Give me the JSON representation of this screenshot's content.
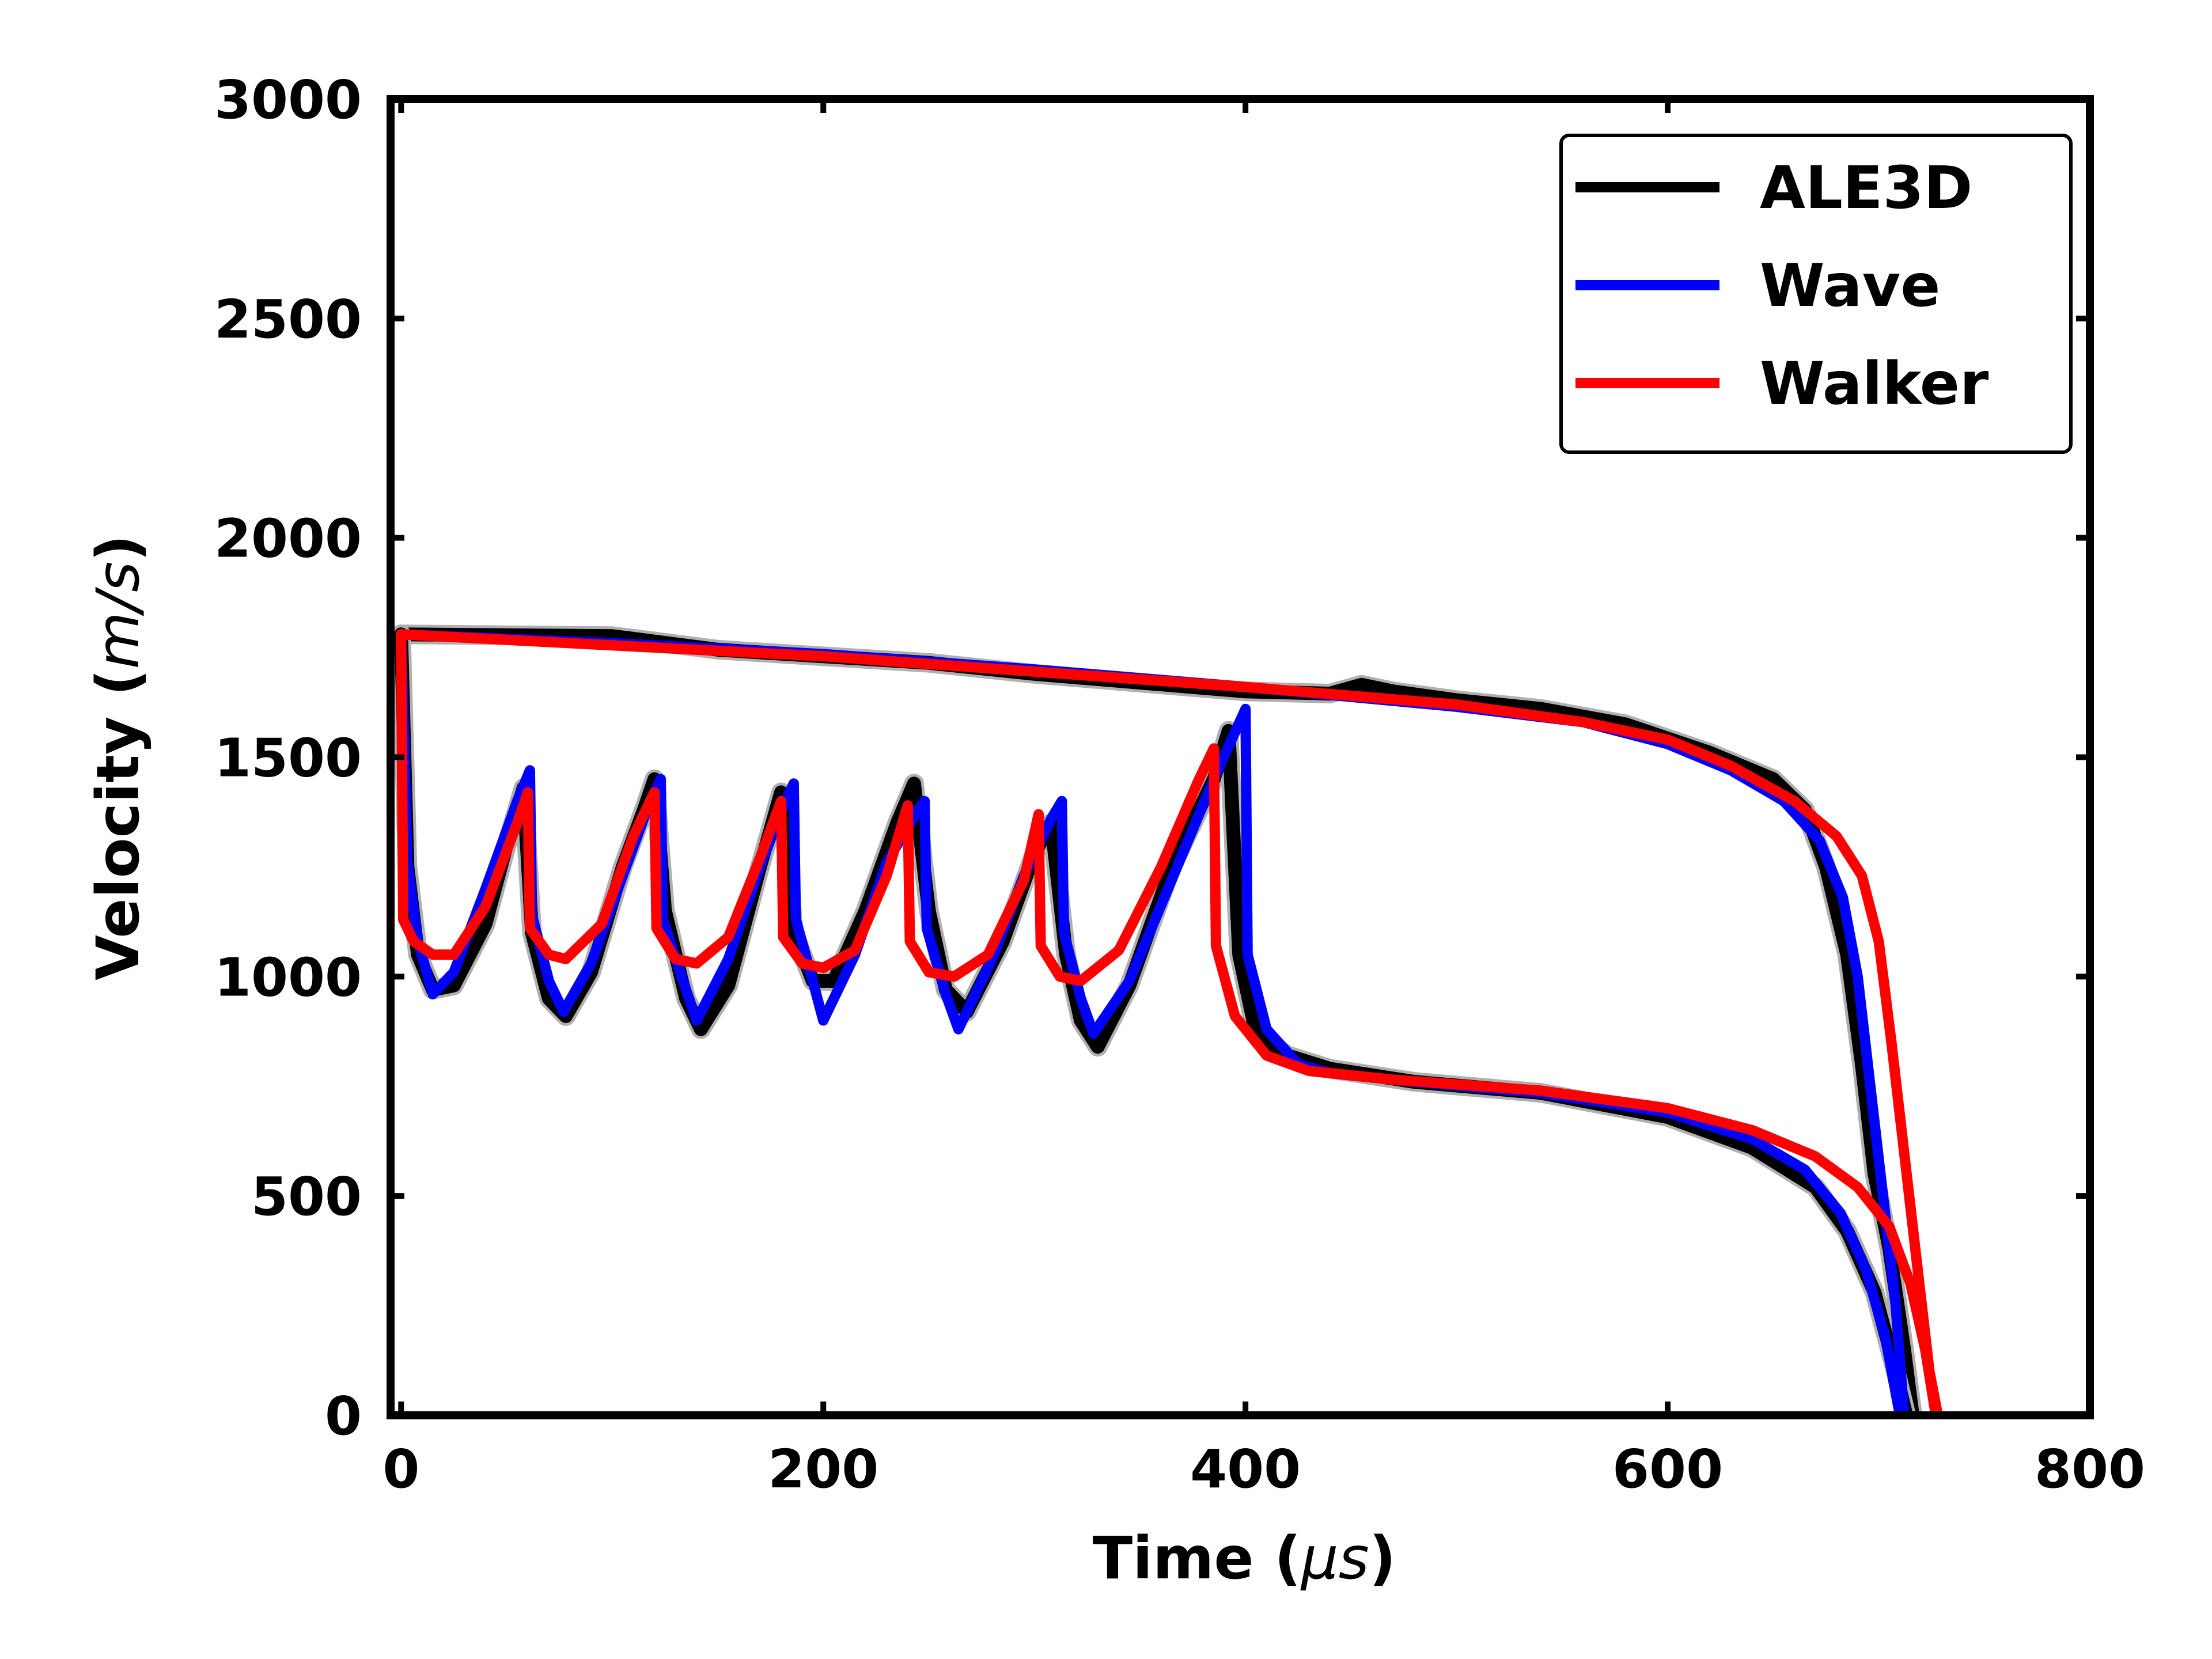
{
  "chart_data": {
    "type": "line",
    "title": "",
    "xlabel_main": "Time (",
    "xlabel_unit": "μs",
    "xlabel_close": ")",
    "ylabel_main": "Velocity (",
    "ylabel_unit": "m/s",
    "ylabel_close": ")",
    "xlim": [
      -5,
      800
    ],
    "ylim": [
      0,
      3000
    ],
    "xticks": [
      0,
      200,
      400,
      600,
      800
    ],
    "yticks": [
      0,
      500,
      1000,
      1500,
      2000,
      2500,
      3000
    ],
    "xtick_labels": [
      "0",
      "200",
      "400",
      "600",
      "800"
    ],
    "ytick_labels": [
      "0",
      "500",
      "1000",
      "1500",
      "2000",
      "2500",
      "3000"
    ],
    "grid": false,
    "legend_position": "top-right",
    "series": [
      {
        "name": "ALE3D",
        "color": "#000000",
        "segments": [
          [
            [
              0,
              1780
            ],
            [
              50,
              1778
            ],
            [
              100,
              1776
            ],
            [
              110,
              1770
            ],
            [
              150,
              1745
            ],
            [
              200,
              1730
            ],
            [
              250,
              1715
            ],
            [
              300,
              1690
            ],
            [
              350,
              1670
            ],
            [
              400,
              1650
            ],
            [
              440,
              1645
            ],
            [
              455,
              1665
            ],
            [
              470,
              1650
            ],
            [
              500,
              1630
            ],
            [
              540,
              1610
            ],
            [
              580,
              1575
            ],
            [
              620,
              1510
            ],
            [
              650,
              1450
            ],
            [
              665,
              1380
            ],
            [
              675,
              1250
            ],
            [
              685,
              1050
            ],
            [
              692,
              800
            ],
            [
              698,
              550
            ],
            [
              705,
              380
            ],
            [
              712,
              150
            ],
            [
              716,
              0
            ]
          ],
          [
            [
              0,
              1780
            ],
            [
              3,
              1250
            ],
            [
              8,
              1050
            ],
            [
              15,
              970
            ],
            [
              25,
              980
            ],
            [
              40,
              1120
            ],
            [
              50,
              1300
            ],
            [
              58,
              1430
            ],
            [
              62,
              1100
            ],
            [
              70,
              950
            ],
            [
              78,
              910
            ],
            [
              90,
              1010
            ],
            [
              105,
              1250
            ],
            [
              115,
              1380
            ],
            [
              120,
              1450
            ],
            [
              125,
              1150
            ],
            [
              135,
              950
            ],
            [
              142,
              880
            ],
            [
              155,
              980
            ],
            [
              170,
              1250
            ],
            [
              180,
              1420
            ],
            [
              186,
              1100
            ],
            [
              195,
              990
            ],
            [
              205,
              990
            ],
            [
              220,
              1150
            ],
            [
              235,
              1350
            ],
            [
              243,
              1440
            ],
            [
              250,
              1150
            ],
            [
              258,
              970
            ],
            [
              268,
              920
            ],
            [
              285,
              1080
            ],
            [
              300,
              1280
            ],
            [
              308,
              1350
            ],
            [
              315,
              1050
            ],
            [
              322,
              900
            ],
            [
              330,
              840
            ],
            [
              345,
              980
            ],
            [
              365,
              1250
            ],
            [
              385,
              1450
            ],
            [
              392,
              1560
            ],
            [
              397,
              1050
            ],
            [
              405,
              870
            ],
            [
              420,
              820
            ],
            [
              440,
              790
            ],
            [
              480,
              760
            ],
            [
              540,
              735
            ],
            [
              600,
              680
            ],
            [
              640,
              610
            ],
            [
              670,
              520
            ],
            [
              685,
              420
            ],
            [
              698,
              280
            ],
            [
              708,
              100
            ],
            [
              713,
              0
            ]
          ]
        ]
      },
      {
        "name": "Wave",
        "color": "#0000ff",
        "segments": [
          [
            [
              0,
              1780
            ],
            [
              100,
              1760
            ],
            [
              200,
              1735
            ],
            [
              300,
              1700
            ],
            [
              400,
              1660
            ],
            [
              500,
              1615
            ],
            [
              560,
              1580
            ],
            [
              600,
              1530
            ],
            [
              630,
              1470
            ],
            [
              655,
              1400
            ],
            [
              672,
              1310
            ],
            [
              683,
              1180
            ],
            [
              690,
              1000
            ],
            [
              696,
              750
            ],
            [
              702,
              500
            ],
            [
              708,
              250
            ],
            [
              712,
              0
            ]
          ],
          [
            [
              0,
              1780
            ],
            [
              3,
              1260
            ],
            [
              8,
              1080
            ],
            [
              15,
              960
            ],
            [
              25,
              1010
            ],
            [
              40,
              1200
            ],
            [
              55,
              1400
            ],
            [
              61,
              1470
            ],
            [
              62,
              1140
            ],
            [
              70,
              990
            ],
            [
              77,
              920
            ],
            [
              90,
              1030
            ],
            [
              105,
              1230
            ],
            [
              118,
              1400
            ],
            [
              123,
              1450
            ],
            [
              124,
              1130
            ],
            [
              135,
              970
            ],
            [
              140,
              900
            ],
            [
              155,
              1040
            ],
            [
              170,
              1250
            ],
            [
              182,
              1400
            ],
            [
              186,
              1440
            ],
            [
              187,
              1130
            ],
            [
              195,
              990
            ],
            [
              200,
              900
            ],
            [
              215,
              1050
            ],
            [
              230,
              1260
            ],
            [
              245,
              1380
            ],
            [
              248,
              1400
            ],
            [
              249,
              1110
            ],
            [
              258,
              960
            ],
            [
              264,
              880
            ],
            [
              280,
              1040
            ],
            [
              295,
              1230
            ],
            [
              308,
              1360
            ],
            [
              313,
              1400
            ],
            [
              314,
              1100
            ],
            [
              322,
              950
            ],
            [
              328,
              870
            ],
            [
              345,
              990
            ],
            [
              365,
              1220
            ],
            [
              385,
              1450
            ],
            [
              400,
              1610
            ],
            [
              401,
              1050
            ],
            [
              410,
              880
            ],
            [
              425,
              800
            ],
            [
              440,
              780
            ],
            [
              480,
              760
            ],
            [
              540,
              735
            ],
            [
              600,
              690
            ],
            [
              640,
              630
            ],
            [
              665,
              560
            ],
            [
              682,
              460
            ],
            [
              694,
              330
            ],
            [
              703,
              180
            ],
            [
              710,
              0
            ]
          ]
        ]
      },
      {
        "name": "Walker",
        "color": "#ff0000",
        "segments": [
          [
            [
              0,
              1780
            ],
            [
              100,
              1755
            ],
            [
              200,
              1730
            ],
            [
              300,
              1695
            ],
            [
              400,
              1660
            ],
            [
              500,
              1620
            ],
            [
              560,
              1580
            ],
            [
              600,
              1540
            ],
            [
              630,
              1480
            ],
            [
              660,
              1400
            ],
            [
              680,
              1320
            ],
            [
              692,
              1230
            ],
            [
              700,
              1080
            ],
            [
              706,
              850
            ],
            [
              712,
              600
            ],
            [
              718,
              350
            ],
            [
              724,
              100
            ],
            [
              728,
              0
            ]
          ],
          [
            [
              0,
              1780
            ],
            [
              1,
              1130
            ],
            [
              6,
              1080
            ],
            [
              15,
              1050
            ],
            [
              25,
              1050
            ],
            [
              40,
              1160
            ],
            [
              55,
              1350
            ],
            [
              60,
              1420
            ],
            [
              61,
              1110
            ],
            [
              70,
              1050
            ],
            [
              78,
              1040
            ],
            [
              95,
              1120
            ],
            [
              110,
              1320
            ],
            [
              120,
              1420
            ],
            [
              121,
              1110
            ],
            [
              130,
              1040
            ],
            [
              140,
              1030
            ],
            [
              155,
              1090
            ],
            [
              170,
              1270
            ],
            [
              180,
              1400
            ],
            [
              181,
              1090
            ],
            [
              190,
              1030
            ],
            [
              200,
              1020
            ],
            [
              215,
              1060
            ],
            [
              230,
              1230
            ],
            [
              240,
              1390
            ],
            [
              241,
              1080
            ],
            [
              250,
              1010
            ],
            [
              262,
              1000
            ],
            [
              278,
              1050
            ],
            [
              295,
              1220
            ],
            [
              302,
              1370
            ],
            [
              303,
              1070
            ],
            [
              312,
              1000
            ],
            [
              322,
              990
            ],
            [
              340,
              1060
            ],
            [
              360,
              1250
            ],
            [
              378,
              1450
            ],
            [
              385,
              1520
            ],
            [
              386,
              1070
            ],
            [
              395,
              910
            ],
            [
              410,
              820
            ],
            [
              430,
              785
            ],
            [
              470,
              765
            ],
            [
              540,
              740
            ],
            [
              600,
              700
            ],
            [
              640,
              650
            ],
            [
              670,
              590
            ],
            [
              690,
              520
            ],
            [
              705,
              430
            ],
            [
              715,
              300
            ],
            [
              722,
              150
            ],
            [
              727,
              0
            ]
          ]
        ]
      }
    ]
  }
}
